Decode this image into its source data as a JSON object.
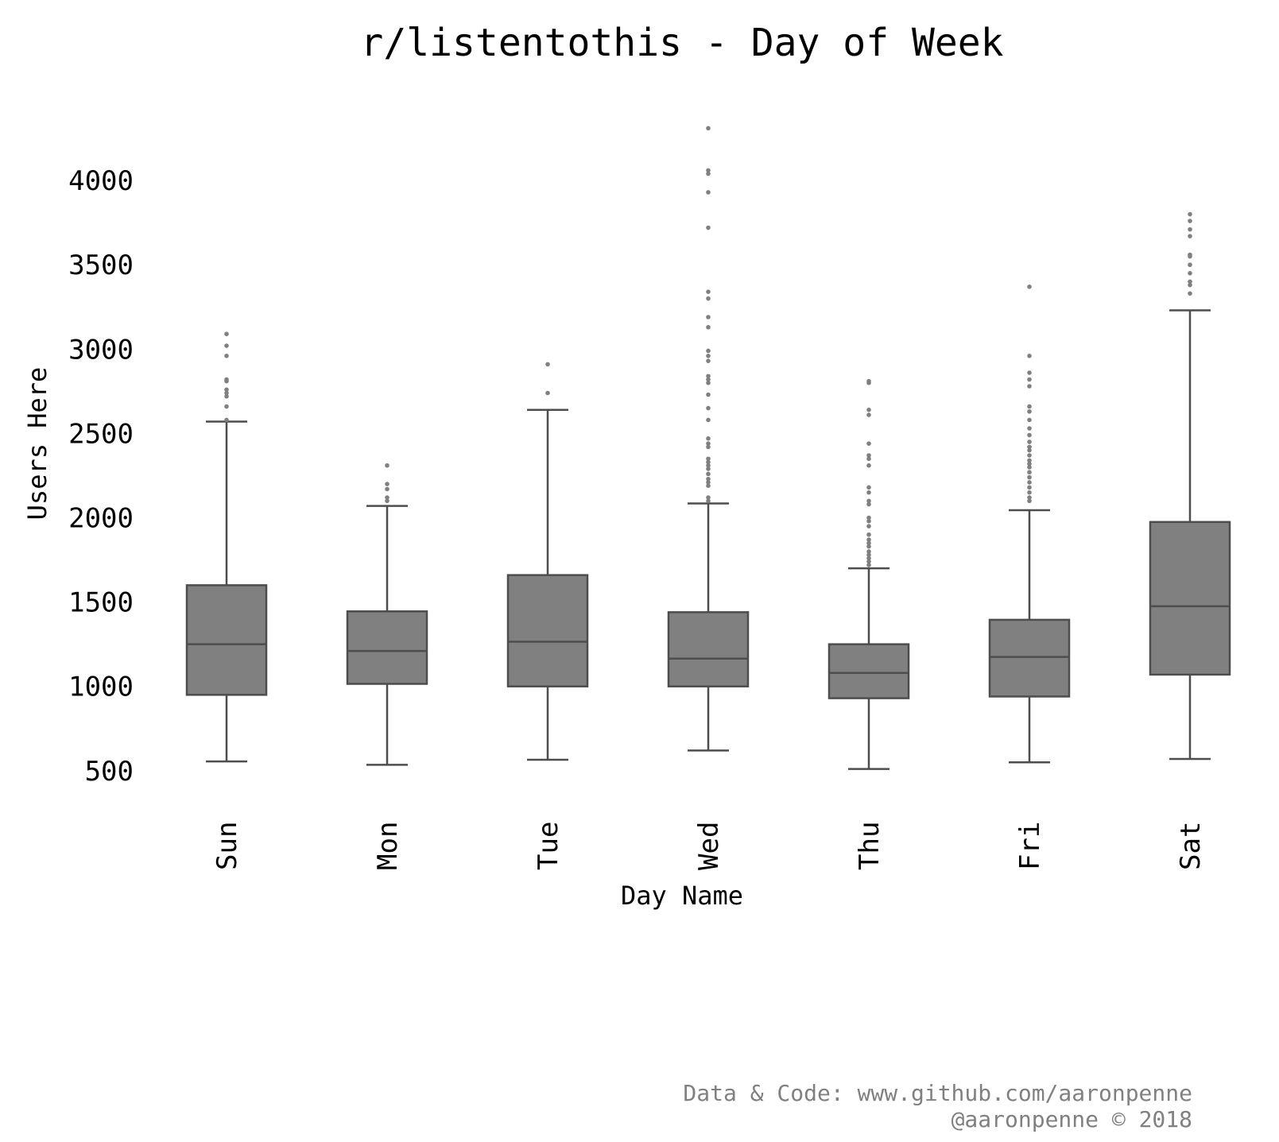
{
  "chart_data": {
    "type": "box",
    "title": "r/listentothis - Day of Week",
    "xlabel": "Day Name",
    "ylabel": "Users Here",
    "categories": [
      "Sun",
      "Mon",
      "Tue",
      "Wed",
      "Thu",
      "Fri",
      "Sat"
    ],
    "y_ticks": [
      "500",
      "1000",
      "1500",
      "2000",
      "2500",
      "3000",
      "3500",
      "4000"
    ],
    "ylim": [
      320,
      4420
    ],
    "grid": false,
    "box_color": "#808080",
    "line_color": "#4d4d4d",
    "outlier_color": "#808080",
    "boxes": [
      {
        "category": "Sun",
        "whisker_low": 555,
        "q1": 950,
        "median": 1250,
        "q3": 1600,
        "whisker_high": 2570,
        "outliers": [
          2580,
          2660,
          2720,
          2740,
          2760,
          2810,
          2820,
          2960,
          3020,
          3090
        ]
      },
      {
        "category": "Mon",
        "whisker_low": 535,
        "q1": 1015,
        "median": 1210,
        "q3": 1445,
        "whisker_high": 2070,
        "outliers": [
          2100,
          2120,
          2170,
          2200,
          2310
        ]
      },
      {
        "category": "Tue",
        "whisker_low": 565,
        "q1": 1000,
        "median": 1265,
        "q3": 1660,
        "whisker_high": 2640,
        "outliers": [
          2740,
          2910
        ]
      },
      {
        "category": "Wed",
        "whisker_low": 620,
        "q1": 1000,
        "median": 1165,
        "q3": 1440,
        "whisker_high": 2085,
        "outliers": [
          2100,
          2120,
          2190,
          2210,
          2230,
          2260,
          2290,
          2310,
          2330,
          2350,
          2420,
          2440,
          2470,
          2580,
          2650,
          2730,
          2800,
          2820,
          2840,
          2930,
          2960,
          2990,
          3130,
          3190,
          3300,
          3340,
          3720,
          3930,
          4040,
          4060,
          4310
        ]
      },
      {
        "category": "Thu",
        "whisker_low": 510,
        "q1": 930,
        "median": 1080,
        "q3": 1250,
        "whisker_high": 1700,
        "outliers": [
          1720,
          1740,
          1760,
          1780,
          1800,
          1830,
          1850,
          1870,
          1900,
          1950,
          1980,
          2000,
          2080,
          2100,
          2150,
          2180,
          2310,
          2350,
          2370,
          2440,
          2610,
          2640,
          2800,
          2810
        ]
      },
      {
        "category": "Fri",
        "whisker_low": 550,
        "q1": 940,
        "median": 1175,
        "q3": 1395,
        "whisker_high": 2045,
        "outliers": [
          2100,
          2120,
          2150,
          2180,
          2210,
          2240,
          2270,
          2300,
          2320,
          2340,
          2370,
          2400,
          2420,
          2450,
          2490,
          2530,
          2580,
          2630,
          2660,
          2780,
          2820,
          2860,
          2960,
          3370
        ]
      },
      {
        "category": "Sat",
        "whisker_low": 570,
        "q1": 1070,
        "median": 1475,
        "q3": 1975,
        "whisker_high": 3230,
        "outliers": [
          3330,
          3380,
          3400,
          3450,
          3500,
          3550,
          3560,
          3670,
          3710,
          3760,
          3800
        ]
      }
    ]
  },
  "footer": {
    "credit_line1": "Data & Code: www.github.com/aaronpenne",
    "credit_line2": "@aaronpenne © 2018"
  }
}
